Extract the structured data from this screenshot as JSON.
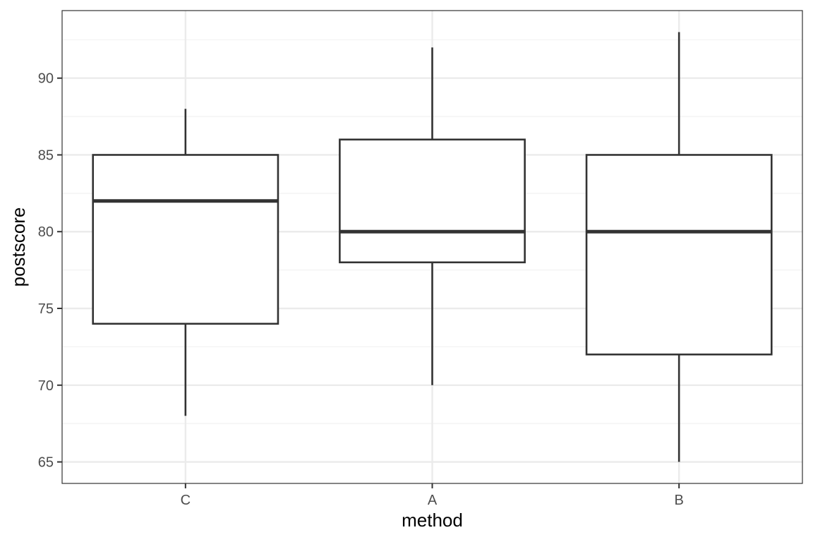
{
  "chart_data": {
    "type": "boxplot",
    "xlabel": "method",
    "ylabel": "postscore",
    "categories": [
      "C",
      "A",
      "B"
    ],
    "boxes": [
      {
        "category": "C",
        "whisker_low": 68,
        "q1": 74,
        "median": 82,
        "q3": 85,
        "whisker_high": 88
      },
      {
        "category": "A",
        "whisker_low": 70,
        "q1": 78,
        "median": 80,
        "q3": 86,
        "whisker_high": 92
      },
      {
        "category": "B",
        "whisker_low": 65,
        "q1": 72,
        "median": 80,
        "q3": 85,
        "whisker_high": 93
      }
    ],
    "ylim": [
      63.6,
      94.4
    ],
    "y_ticks": [
      65,
      70,
      75,
      80,
      85,
      90
    ],
    "y_tick_labels": [
      "65",
      "70",
      "75",
      "80",
      "85",
      "90"
    ],
    "grid": true,
    "colors": {
      "box_stroke": "#333333",
      "box_fill": "#ffffff",
      "grid_major": "#ebebeb",
      "grid_minor": "#f2f2f2",
      "panel_border": "#333333"
    }
  }
}
